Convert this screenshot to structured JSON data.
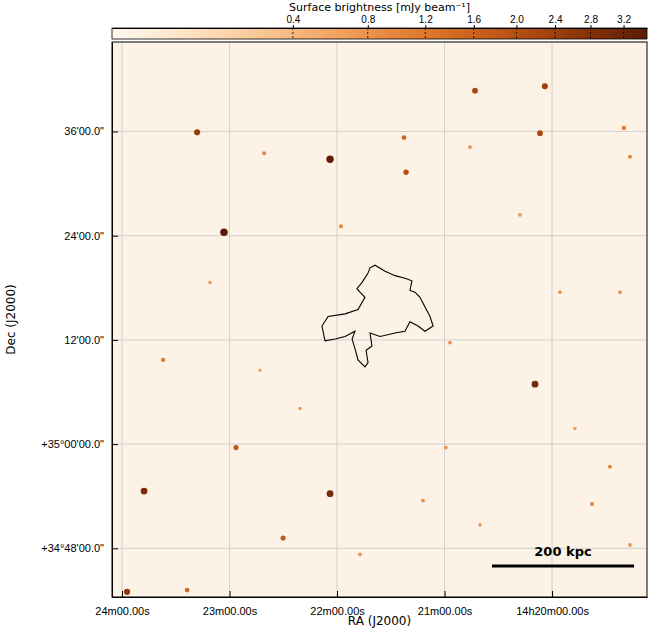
{
  "chart_data": {
    "type": "sky_map",
    "xlabel": "RA (J2000)",
    "ylabel": "Dec (J2000)",
    "xlim": [
      245.6,
      -53.0
    ],
    "ylim": [
      -17.6,
      46.3
    ],
    "xticks": [
      {
        "value": 240,
        "label": "24m00.00s"
      },
      {
        "value": 180,
        "label": "23m00.00s"
      },
      {
        "value": 120,
        "label": "22m00.00s"
      },
      {
        "value": 60,
        "label": "21m00.00s"
      },
      {
        "value": 0,
        "label": "14h20m00.00s"
      }
    ],
    "yticks": [
      {
        "value": 36,
        "label": "36'00.0\""
      },
      {
        "value": 24,
        "label": "24'00.0\""
      },
      {
        "value": 12,
        "label": "12'00.0\""
      },
      {
        "value": 0,
        "label": "+35°00'00.0\""
      },
      {
        "value": -12,
        "label": "+34°48'00.0\""
      }
    ],
    "grid": true,
    "colorbar": {
      "title": "Surface brightness [mJy beam⁻¹]",
      "range": [
        0,
        3.5
      ],
      "ticks": [
        0.4,
        0.8,
        1.2,
        1.6,
        {
          "value": 2,
          "label": "2.0"
        },
        2.4,
        2.8,
        3.2
      ]
    },
    "sources": {
      "x": [
        198.1,
        160.7,
        123.9,
        82.6,
        81.5,
        43.0,
        4.0,
        6.7,
        -40.1,
        -43.5,
        183.1,
        117.8,
        17.9,
        -4.4,
        9.5,
        217.1,
        176.4,
        227.7,
        123.9,
        150.1,
        203.7,
        237.2,
        72.0,
        59.2,
        -32.3,
        -22.3,
        -43.5,
        107.2,
        40.2,
        -37.9,
        45.8,
        190.9,
        140.7,
        57.0,
        -12.8,
        163.0
      ],
      "y": [
        35.9,
        33.5,
        32.8,
        35.3,
        31.3,
        40.7,
        41.2,
        35.8,
        36.4,
        33.1,
        24.4,
        25.1,
        26.4,
        17.5,
        6.9,
        9.7,
        -0.4,
        -5.4,
        -5.7,
        -10.8,
        -16.8,
        -17.0,
        -6.5,
        -0.4,
        -2.6,
        -6.9,
        -11.6,
        -12.7,
        -9.3,
        17.5,
        34.2,
        18.6,
        4.1,
        11.7,
        1.8,
        8.5
      ],
      "brightness": [
        2.5,
        1.0,
        3.4,
        1.5,
        2.0,
        2.2,
        2.4,
        2.2,
        1.2,
        1.0,
        3.5,
        1.0,
        0.8,
        0.8,
        3.0,
        1.2,
        1.8,
        3.0,
        3.0,
        1.8,
        1.5,
        2.6,
        0.9,
        0.8,
        1.0,
        1.0,
        0.8,
        0.8,
        0.7,
        0.8,
        0.8,
        0.7,
        0.7,
        0.8,
        0.7,
        0.6
      ]
    },
    "contour": {
      "x": [
        101.6,
        102.7,
        106.1,
        108.9,
        107.2,
        104.4,
        108.3,
        115.5,
        125.0,
        128.4,
        126.7,
        121.1,
        115.5,
        110.0,
        111.6,
        110.0,
        108.3,
        104.4,
        102.7,
        103.8,
        100.5,
        101.6,
        96.0,
        87.6,
        82.1,
        79.3,
        74.8,
        70.9,
        66.4,
        68.1,
        70.9,
        73.7,
        76.5,
        79.3,
        78.2,
        82.1,
        87.6,
        93.2,
        98.8
      ],
      "y": [
        20.3,
        19.7,
        18.6,
        17.9,
        17.5,
        16.9,
        15.5,
        15.0,
        14.7,
        13.6,
        11.9,
        12.1,
        12.4,
        13.0,
        12.1,
        11.0,
        9.7,
        8.9,
        9.4,
        10.8,
        11.3,
        12.8,
        12.4,
        12.8,
        13.0,
        14.1,
        13.6,
        13.0,
        13.6,
        14.7,
        15.8,
        16.9,
        17.5,
        17.7,
        18.8,
        19.1,
        19.4,
        19.9,
        20.6
      ]
    },
    "annotations": [
      {
        "text": "200 kpc"
      }
    ]
  }
}
